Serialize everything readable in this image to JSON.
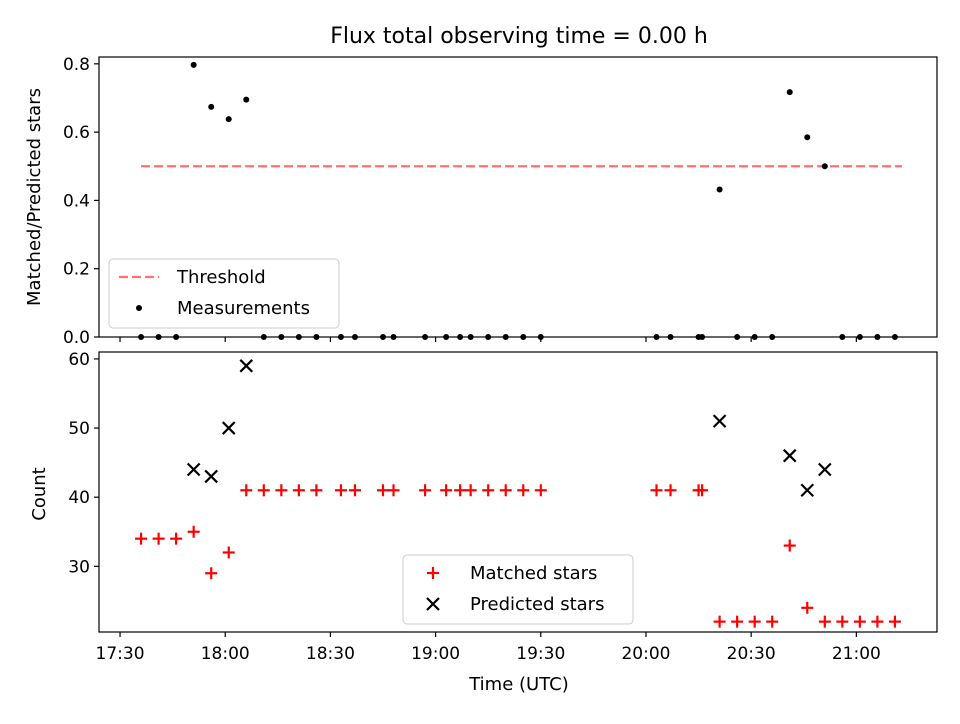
{
  "figure": {
    "title": "Flux total observing time = 0.00 h"
  },
  "chart_data": [
    {
      "type": "scatter",
      "title": "Flux total observing time = 0.00 h",
      "xlabel": "",
      "ylabel": "Matched/Predicted stars",
      "xlim": [
        "17:24",
        "21:23"
      ],
      "ylim": [
        0,
        0.82
      ],
      "yticks": [
        0.0,
        0.2,
        0.4,
        0.6,
        0.8
      ],
      "ytick_labels": [
        "0.0",
        "0.2",
        "0.4",
        "0.6",
        "0.8"
      ],
      "legend_placement": "lower-left",
      "threshold": {
        "name": "Threshold",
        "value": 0.5,
        "x_start": "17:36",
        "x_end": "21:13",
        "color": "#ff7070",
        "style": "dashed"
      },
      "series": [
        {
          "name": "Measurements",
          "color": "#000000",
          "marker": "dot",
          "points": [
            [
              "17:36",
              0.0
            ],
            [
              "17:41",
              0.0
            ],
            [
              "17:46",
              0.0
            ],
            [
              "17:51",
              0.797
            ],
            [
              "17:56",
              0.674
            ],
            [
              "18:01",
              0.638
            ],
            [
              "18:06",
              0.695
            ],
            [
              "18:11",
              0.0
            ],
            [
              "18:16",
              0.0
            ],
            [
              "18:21",
              0.0
            ],
            [
              "18:26",
              0.0
            ],
            [
              "18:33",
              0.0
            ],
            [
              "18:37",
              0.0
            ],
            [
              "18:45",
              0.0
            ],
            [
              "18:48",
              0.0
            ],
            [
              "18:57",
              0.0
            ],
            [
              "19:03",
              0.0
            ],
            [
              "19:07",
              0.0
            ],
            [
              "19:10",
              0.0
            ],
            [
              "19:15",
              0.0
            ],
            [
              "19:20",
              0.0
            ],
            [
              "19:25",
              0.0
            ],
            [
              "19:30",
              0.0
            ],
            [
              "20:03",
              0.0
            ],
            [
              "20:07",
              0.0
            ],
            [
              "20:15",
              0.0
            ],
            [
              "20:16",
              0.0
            ],
            [
              "20:21",
              0.432
            ],
            [
              "20:26",
              0.0
            ],
            [
              "20:31",
              0.0
            ],
            [
              "20:36",
              0.0
            ],
            [
              "20:41",
              0.717
            ],
            [
              "20:46",
              0.585
            ],
            [
              "20:51",
              0.5
            ],
            [
              "20:56",
              0.0
            ],
            [
              "21:01",
              0.0
            ],
            [
              "21:06",
              0.0
            ],
            [
              "21:11",
              0.0
            ]
          ]
        }
      ]
    },
    {
      "type": "scatter",
      "title": "",
      "xlabel": "Time (UTC)",
      "ylabel": "Count",
      "xlim": [
        "17:24",
        "21:23"
      ],
      "ylim": [
        20.5,
        61
      ],
      "yticks": [
        30,
        40,
        50,
        60
      ],
      "ytick_labels": [
        "30",
        "40",
        "50",
        "60"
      ],
      "xticks": [
        "17:30",
        "18:00",
        "18:30",
        "19:00",
        "19:30",
        "20:00",
        "20:30",
        "21:00"
      ],
      "xtick_labels": [
        "17:30",
        "18:00",
        "18:30",
        "19:00",
        "19:30",
        "20:00",
        "20:30",
        "21:00"
      ],
      "legend_placement": "lower-center",
      "series": [
        {
          "name": "Matched stars",
          "color": "#ff0000",
          "marker": "plus",
          "points": [
            [
              "17:36",
              34
            ],
            [
              "17:41",
              34
            ],
            [
              "17:46",
              34
            ],
            [
              "17:51",
              35
            ],
            [
              "17:56",
              29
            ],
            [
              "18:01",
              32
            ],
            [
              "18:06",
              41
            ],
            [
              "18:11",
              41
            ],
            [
              "18:16",
              41
            ],
            [
              "18:21",
              41
            ],
            [
              "18:26",
              41
            ],
            [
              "18:33",
              41
            ],
            [
              "18:37",
              41
            ],
            [
              "18:45",
              41
            ],
            [
              "18:48",
              41
            ],
            [
              "18:57",
              41
            ],
            [
              "19:03",
              41
            ],
            [
              "19:07",
              41
            ],
            [
              "19:10",
              41
            ],
            [
              "19:15",
              41
            ],
            [
              "19:20",
              41
            ],
            [
              "19:25",
              41
            ],
            [
              "19:30",
              41
            ],
            [
              "20:03",
              41
            ],
            [
              "20:07",
              41
            ],
            [
              "20:15",
              41
            ],
            [
              "20:16",
              41
            ],
            [
              "20:21",
              22
            ],
            [
              "20:26",
              22
            ],
            [
              "20:31",
              22
            ],
            [
              "20:36",
              22
            ],
            [
              "20:41",
              33
            ],
            [
              "20:46",
              24
            ],
            [
              "20:51",
              22
            ],
            [
              "20:56",
              22
            ],
            [
              "21:01",
              22
            ],
            [
              "21:06",
              22
            ],
            [
              "21:11",
              22
            ]
          ]
        },
        {
          "name": "Predicted stars",
          "color": "#000000",
          "marker": "x",
          "points": [
            [
              "17:51",
              44
            ],
            [
              "17:56",
              43
            ],
            [
              "18:01",
              50
            ],
            [
              "18:06",
              59
            ],
            [
              "20:21",
              51
            ],
            [
              "20:41",
              46
            ],
            [
              "20:46",
              41
            ],
            [
              "20:51",
              44
            ]
          ]
        }
      ]
    }
  ]
}
